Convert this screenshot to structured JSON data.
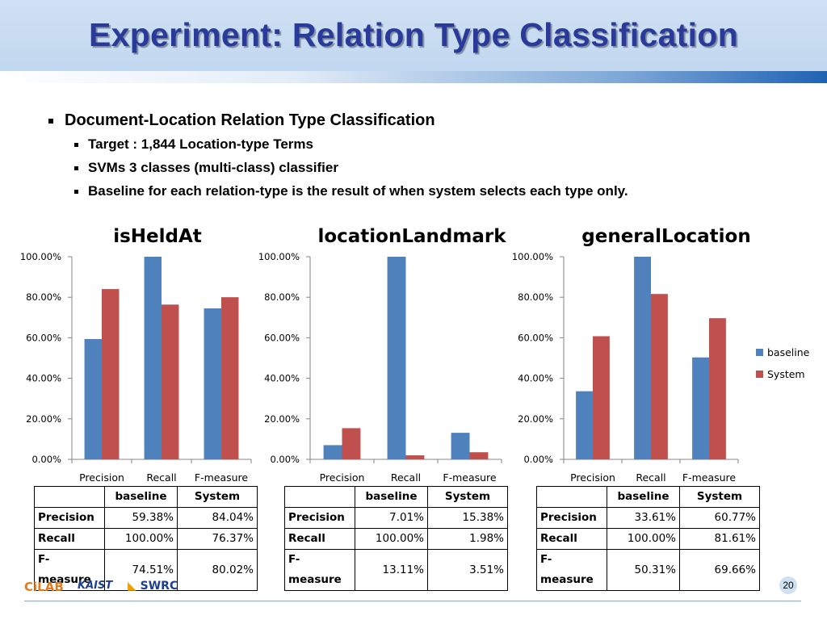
{
  "slide": {
    "title": "Experiment: Relation Type Classification",
    "bullet_main": "Document-Location Relation Type Classification",
    "sub_bullets": [
      "Target : 1,844 Location-type Terms",
      "SVMs 3 classes (multi-class) classifier",
      "Baseline for each relation-type is the result of when system selects each type only."
    ],
    "page_number": "20",
    "logos": [
      "CiLAB",
      "KAIST",
      "SWRC"
    ]
  },
  "colors": {
    "baseline": "#4f81bd",
    "system": "#c0504d",
    "title": "#2a3a9a"
  },
  "legend": [
    "baseline",
    "System"
  ],
  "chart_data": [
    {
      "type": "bar",
      "title": "isHeldAt",
      "categories": [
        "Precision",
        "Recall",
        "F-measure"
      ],
      "series": [
        {
          "name": "baseline",
          "values": [
            59.38,
            100.0,
            74.51
          ]
        },
        {
          "name": "System",
          "values": [
            84.04,
            76.37,
            80.02
          ]
        }
      ],
      "ylim": [
        0,
        100
      ],
      "yticks": [
        "0.00%",
        "20.00%",
        "40.00%",
        "60.00%",
        "80.00%",
        "100.00%"
      ],
      "table": {
        "headers": [
          "",
          "baseline",
          "System"
        ],
        "rows": [
          [
            "Precision",
            "59.38%",
            "84.04%"
          ],
          [
            "Recall",
            "100.00%",
            "76.37%"
          ],
          [
            "F-measure",
            "74.51%",
            "80.02%"
          ]
        ]
      }
    },
    {
      "type": "bar",
      "title": "locationLandmark",
      "categories": [
        "Precision",
        "Recall",
        "F-measure"
      ],
      "series": [
        {
          "name": "baseline",
          "values": [
            7.01,
            100.0,
            13.11
          ]
        },
        {
          "name": "System",
          "values": [
            15.38,
            1.98,
            3.51
          ]
        }
      ],
      "ylim": [
        0,
        100
      ],
      "yticks": [
        "0.00%",
        "20.00%",
        "40.00%",
        "60.00%",
        "80.00%",
        "100.00%"
      ],
      "table": {
        "headers": [
          "",
          "baseline",
          "System"
        ],
        "rows": [
          [
            "Precision",
            "7.01%",
            "15.38%"
          ],
          [
            "Recall",
            "100.00%",
            "1.98%"
          ],
          [
            "F-measure",
            "13.11%",
            "3.51%"
          ]
        ]
      }
    },
    {
      "type": "bar",
      "title": "generalLocation",
      "categories": [
        "Precision",
        "Recall",
        "F-measure"
      ],
      "series": [
        {
          "name": "baseline",
          "values": [
            33.61,
            100.0,
            50.31
          ]
        },
        {
          "name": "System",
          "values": [
            60.77,
            81.61,
            69.66
          ]
        }
      ],
      "ylim": [
        0,
        100
      ],
      "yticks": [
        "0.00%",
        "20.00%",
        "40.00%",
        "60.00%",
        "80.00%",
        "100.00%"
      ],
      "legend_position": "right",
      "table": {
        "headers": [
          "",
          "baseline",
          "System"
        ],
        "rows": [
          [
            "Precision",
            "33.61%",
            "60.77%"
          ],
          [
            "Recall",
            "100.00%",
            "81.61%"
          ],
          [
            "F-measure",
            "50.31%",
            "69.66%"
          ]
        ]
      }
    }
  ]
}
